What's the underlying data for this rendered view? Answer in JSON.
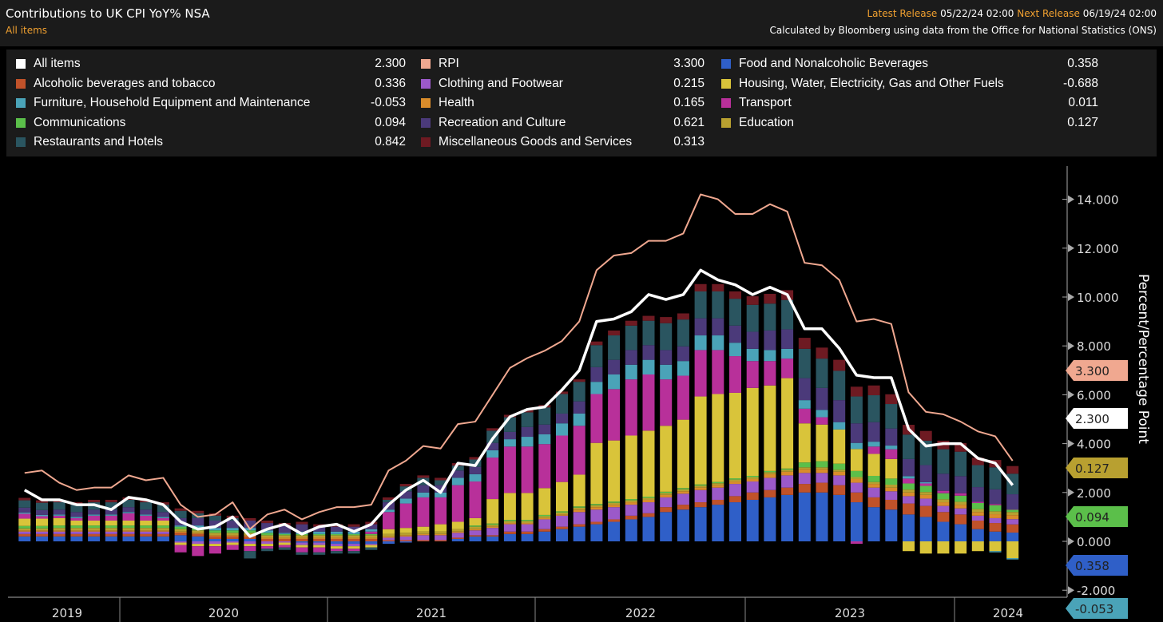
{
  "header": {
    "title": "Contributions to UK CPI YoY% NSA",
    "subtitle": "All items",
    "latest_label": "Latest Release",
    "latest_value": "05/22/24 02:00",
    "next_label": "Next Release",
    "next_value": "06/19/24 02:00",
    "source": "Calculated by Bloomberg using data from the Office for National Statistics (ONS)"
  },
  "legend": [
    {
      "name": "All items",
      "value": "2.300",
      "color": "#ffffff"
    },
    {
      "name": "Alcoholic beverages and tobacco",
      "value": "0.336",
      "color": "#c0522a"
    },
    {
      "name": "Furniture, Household Equipment and Maintenance",
      "value": "-0.053",
      "color": "#4aa3b8"
    },
    {
      "name": "Communications",
      "value": "0.094",
      "color": "#5bbf4a"
    },
    {
      "name": "Restaurants and Hotels",
      "value": "0.842",
      "color": "#2a5560"
    },
    {
      "name": "RPI",
      "value": "3.300",
      "color": "#f0a890"
    },
    {
      "name": "Clothing and Footwear",
      "value": "0.215",
      "color": "#9b59c9"
    },
    {
      "name": "Health",
      "value": "0.165",
      "color": "#d98c2b"
    },
    {
      "name": "Recreation and Culture",
      "value": "0.621",
      "color": "#4b3a7a"
    },
    {
      "name": "Miscellaneous Goods and Services",
      "value": "0.313",
      "color": "#6e1a22"
    },
    {
      "name": "Food and Nonalcoholic Beverages",
      "value": "0.358",
      "color": "#2f5fc8"
    },
    {
      "name": "Housing, Water, Electricity, Gas and Other Fuels",
      "value": "-0.688",
      "color": "#d9c43a"
    },
    {
      "name": "Transport",
      "value": "0.011",
      "color": "#b8309a"
    },
    {
      "name": "Education",
      "value": "0.127",
      "color": "#b8a030"
    }
  ],
  "chart_data": {
    "type": "bar",
    "title": "Contributions to UK CPI YoY% NSA",
    "ylabel": "Percent/Percentage Point",
    "ylim": [
      -2,
      15
    ],
    "yticks": [
      "-2.000",
      "0.000",
      "2.000",
      "4.000",
      "6.000",
      "8.000",
      "10.000",
      "12.000",
      "14.000"
    ],
    "years": [
      "2019",
      "2020",
      "2021",
      "2022",
      "2023",
      "2024"
    ],
    "period": "Jul 2019 - Apr 2024 monthly",
    "lines": {
      "All items": [
        2.1,
        1.7,
        1.7,
        1.5,
        1.5,
        1.3,
        1.8,
        1.7,
        1.5,
        0.8,
        0.5,
        0.6,
        1.0,
        0.2,
        0.5,
        0.7,
        0.3,
        0.6,
        0.7,
        0.4,
        0.7,
        1.5,
        2.1,
        2.5,
        2.0,
        3.2,
        3.1,
        4.2,
        5.1,
        5.4,
        5.5,
        6.2,
        7.0,
        9.0,
        9.1,
        9.4,
        10.1,
        9.9,
        10.1,
        11.1,
        10.7,
        10.5,
        10.1,
        10.4,
        10.1,
        8.7,
        8.7,
        7.9,
        6.8,
        6.7,
        6.7,
        4.6,
        3.9,
        4.0,
        4.0,
        3.4,
        3.2,
        2.3
      ],
      "RPI": [
        2.8,
        2.9,
        2.4,
        2.1,
        2.2,
        2.2,
        2.7,
        2.5,
        2.6,
        1.5,
        1.0,
        1.1,
        1.6,
        0.5,
        1.1,
        1.3,
        0.9,
        1.2,
        1.4,
        1.4,
        1.5,
        2.9,
        3.3,
        3.9,
        3.8,
        4.8,
        4.9,
        6.0,
        7.1,
        7.5,
        7.8,
        8.2,
        9.0,
        11.1,
        11.7,
        11.8,
        12.3,
        12.3,
        12.6,
        14.2,
        14.0,
        13.4,
        13.4,
        13.8,
        13.5,
        11.4,
        11.3,
        10.7,
        9.0,
        9.1,
        8.9,
        6.1,
        5.3,
        5.2,
        4.9,
        4.5,
        4.3,
        3.3
      ]
    },
    "series": [
      {
        "name": "Food and Nonalcoholic Beverages",
        "values": [
          0.2,
          0.2,
          0.2,
          0.2,
          0.2,
          0.2,
          0.2,
          0.2,
          0.2,
          0.25,
          0.2,
          0.1,
          0.1,
          0.1,
          0.0,
          0.0,
          -0.05,
          -0.05,
          -0.1,
          -0.1,
          -0.1,
          -0.1,
          -0.05,
          0.0,
          0.0,
          0.1,
          0.2,
          0.2,
          0.3,
          0.3,
          0.4,
          0.5,
          0.6,
          0.7,
          0.8,
          0.9,
          1.0,
          1.2,
          1.3,
          1.4,
          1.5,
          1.6,
          1.7,
          1.8,
          1.9,
          2.0,
          2.0,
          1.9,
          1.6,
          1.4,
          1.3,
          1.1,
          1.0,
          0.8,
          0.7,
          0.5,
          0.4,
          0.358
        ]
      },
      {
        "name": "Alcoholic beverages and tobacco",
        "values": [
          0.1,
          0.1,
          0.1,
          0.1,
          0.1,
          0.1,
          0.1,
          0.1,
          0.1,
          0.1,
          0.1,
          0.1,
          0.1,
          0.1,
          0.1,
          0.1,
          0.1,
          0.1,
          0.1,
          0.1,
          0.1,
          0.05,
          0.05,
          0.05,
          0.05,
          0.05,
          0.05,
          0.05,
          0.1,
          0.1,
          0.1,
          0.1,
          0.1,
          0.1,
          0.1,
          0.15,
          0.15,
          0.2,
          0.2,
          0.2,
          0.2,
          0.25,
          0.3,
          0.3,
          0.3,
          0.35,
          0.4,
          0.4,
          0.4,
          0.4,
          0.4,
          0.45,
          0.45,
          0.4,
          0.4,
          0.35,
          0.35,
          0.336
        ]
      },
      {
        "name": "Clothing and Footwear",
        "values": [
          0.1,
          0.1,
          0.1,
          0.1,
          0.1,
          0.1,
          0.1,
          0.1,
          0.1,
          -0.05,
          -0.1,
          -0.1,
          -0.05,
          -0.1,
          -0.1,
          -0.05,
          -0.1,
          -0.1,
          -0.1,
          -0.1,
          -0.05,
          0.1,
          0.15,
          0.2,
          0.2,
          0.2,
          0.2,
          0.3,
          0.3,
          0.3,
          0.4,
          0.45,
          0.5,
          0.5,
          0.5,
          0.45,
          0.45,
          0.4,
          0.45,
          0.5,
          0.5,
          0.5,
          0.45,
          0.5,
          0.5,
          0.45,
          0.4,
          0.4,
          0.4,
          0.4,
          0.35,
          0.3,
          0.3,
          0.25,
          0.25,
          0.2,
          0.2,
          0.215
        ]
      },
      {
        "name": "Health",
        "values": [
          0.05,
          0.05,
          0.05,
          0.05,
          0.05,
          0.05,
          0.05,
          0.05,
          0.05,
          0.05,
          0.05,
          0.05,
          0.05,
          0.05,
          0.05,
          0.05,
          0.05,
          0.05,
          0.05,
          0.05,
          0.05,
          0.05,
          0.05,
          0.05,
          0.05,
          0.05,
          0.05,
          0.05,
          0.05,
          0.05,
          0.05,
          0.05,
          0.1,
          0.1,
          0.1,
          0.1,
          0.1,
          0.1,
          0.1,
          0.1,
          0.1,
          0.1,
          0.1,
          0.15,
          0.15,
          0.15,
          0.15,
          0.15,
          0.15,
          0.15,
          0.15,
          0.15,
          0.15,
          0.15,
          0.15,
          0.15,
          0.16,
          0.165
        ]
      },
      {
        "name": "Education",
        "values": [
          0.08,
          0.08,
          0.1,
          0.1,
          0.1,
          0.1,
          0.1,
          0.1,
          0.1,
          0.1,
          0.1,
          0.1,
          0.1,
          0.1,
          0.1,
          0.1,
          0.1,
          0.1,
          0.1,
          0.1,
          0.1,
          0.1,
          0.1,
          0.1,
          0.1,
          0.1,
          0.1,
          0.08,
          0.08,
          0.08,
          0.08,
          0.08,
          0.08,
          0.08,
          0.08,
          0.08,
          0.08,
          0.08,
          0.08,
          0.08,
          0.08,
          0.08,
          0.08,
          0.08,
          0.08,
          0.08,
          0.08,
          0.08,
          0.08,
          0.08,
          0.12,
          0.12,
          0.12,
          0.12,
          0.12,
          0.12,
          0.12,
          0.127
        ]
      },
      {
        "name": "Communications",
        "values": [
          0.1,
          0.1,
          0.1,
          0.1,
          0.1,
          0.1,
          0.1,
          0.1,
          0.1,
          0.1,
          0.1,
          0.1,
          0.1,
          0.1,
          0.1,
          0.05,
          0.05,
          0.05,
          0.05,
          0.05,
          0.05,
          0.0,
          0.0,
          0.0,
          0.0,
          0.0,
          0.05,
          0.05,
          0.05,
          0.05,
          0.05,
          0.05,
          0.05,
          0.05,
          0.05,
          0.05,
          0.05,
          0.05,
          0.05,
          0.05,
          0.05,
          0.05,
          0.05,
          0.05,
          0.05,
          0.2,
          0.25,
          0.25,
          0.25,
          0.25,
          0.25,
          0.25,
          0.25,
          0.25,
          0.25,
          0.25,
          0.25,
          0.094
        ]
      },
      {
        "name": "Housing, Water, Electricity, Gas and Other Fuels",
        "values": [
          0.3,
          0.3,
          0.3,
          0.2,
          0.2,
          0.2,
          0.2,
          0.2,
          0.2,
          -0.1,
          -0.1,
          -0.1,
          -0.1,
          -0.1,
          -0.1,
          -0.1,
          -0.1,
          -0.1,
          -0.1,
          -0.1,
          -0.1,
          0.2,
          0.2,
          0.2,
          0.3,
          0.3,
          0.3,
          1.0,
          1.1,
          1.1,
          1.1,
          1.2,
          1.3,
          2.5,
          2.5,
          2.6,
          2.7,
          2.7,
          2.8,
          3.6,
          3.6,
          3.5,
          3.6,
          3.5,
          3.7,
          1.6,
          1.5,
          1.4,
          0.9,
          0.9,
          0.8,
          -0.4,
          -0.5,
          -0.5,
          -0.5,
          -0.4,
          -0.4,
          -0.688
        ]
      },
      {
        "name": "Transport",
        "values": [
          0.2,
          0.1,
          0.1,
          0.1,
          0.2,
          0.2,
          0.3,
          0.2,
          0.1,
          -0.3,
          -0.4,
          -0.3,
          -0.2,
          -0.2,
          -0.1,
          -0.1,
          -0.2,
          -0.2,
          -0.1,
          -0.1,
          0.1,
          0.7,
          1.0,
          1.2,
          1.1,
          1.5,
          1.5,
          1.7,
          1.9,
          1.9,
          1.8,
          1.9,
          2.0,
          2.0,
          2.1,
          2.3,
          2.3,
          1.9,
          1.8,
          1.9,
          1.8,
          1.5,
          1.1,
          1.0,
          0.8,
          0.6,
          0.3,
          0.0,
          -0.1,
          0.3,
          0.4,
          0.2,
          0.1,
          0.1,
          0.1,
          0.05,
          0.05,
          0.011
        ]
      },
      {
        "name": "Furniture, Household Equipment and Maintenance",
        "values": [
          0.05,
          0.05,
          0.05,
          0.05,
          0.05,
          0.05,
          0.05,
          0.05,
          0.05,
          0.05,
          0.1,
          0.1,
          0.1,
          0.1,
          0.1,
          0.05,
          0.1,
          0.1,
          0.1,
          0.1,
          0.1,
          0.1,
          0.2,
          0.2,
          0.2,
          0.3,
          0.3,
          0.3,
          0.3,
          0.4,
          0.4,
          0.5,
          0.5,
          0.5,
          0.6,
          0.6,
          0.6,
          0.6,
          0.6,
          0.6,
          0.6,
          0.55,
          0.5,
          0.45,
          0.4,
          0.35,
          0.3,
          0.3,
          0.25,
          0.2,
          0.15,
          0.1,
          0.05,
          0.0,
          0.0,
          0.0,
          -0.05,
          -0.053
        ]
      },
      {
        "name": "Recreation and Culture",
        "values": [
          0.2,
          0.2,
          0.2,
          0.2,
          0.2,
          0.2,
          0.2,
          0.2,
          0.2,
          0.3,
          0.3,
          0.3,
          0.3,
          0.3,
          0.3,
          0.3,
          0.3,
          0.2,
          0.2,
          0.2,
          0.2,
          0.3,
          0.3,
          0.3,
          0.3,
          0.3,
          0.3,
          0.3,
          0.3,
          0.4,
          0.4,
          0.4,
          0.5,
          0.6,
          0.6,
          0.6,
          0.6,
          0.6,
          0.6,
          0.7,
          0.7,
          0.7,
          0.7,
          0.8,
          0.8,
          0.9,
          0.9,
          0.9,
          0.8,
          0.8,
          0.7,
          0.7,
          0.7,
          0.7,
          0.7,
          0.6,
          0.6,
          0.621
        ]
      },
      {
        "name": "Restaurants and Hotels",
        "values": [
          0.3,
          0.3,
          0.3,
          0.3,
          0.3,
          0.3,
          0.3,
          0.3,
          0.3,
          0.3,
          0.2,
          0.2,
          0.1,
          -0.3,
          -0.1,
          -0.1,
          -0.1,
          -0.1,
          -0.1,
          -0.1,
          -0.1,
          0.1,
          0.2,
          0.3,
          0.2,
          0.2,
          0.3,
          0.5,
          0.6,
          0.6,
          0.7,
          0.8,
          0.8,
          0.9,
          1.0,
          1.0,
          1.0,
          1.1,
          1.1,
          1.1,
          1.1,
          1.1,
          1.1,
          1.1,
          1.2,
          1.2,
          1.2,
          1.2,
          1.1,
          1.1,
          1.0,
          1.0,
          1.0,
          1.0,
          1.0,
          0.9,
          0.9,
          0.842
        ]
      },
      {
        "name": "Miscellaneous Goods and Services",
        "values": [
          0.1,
          0.1,
          0.1,
          0.1,
          0.1,
          0.1,
          0.1,
          0.1,
          0.1,
          0.1,
          0.1,
          0.1,
          0.1,
          0.1,
          0.1,
          0.1,
          0.1,
          0.1,
          0.1,
          0.1,
          0.1,
          0.1,
          0.1,
          0.1,
          0.1,
          0.1,
          0.1,
          0.1,
          0.1,
          0.1,
          0.1,
          0.1,
          0.1,
          0.15,
          0.2,
          0.2,
          0.2,
          0.25,
          0.25,
          0.3,
          0.3,
          0.3,
          0.35,
          0.4,
          0.4,
          0.45,
          0.45,
          0.45,
          0.4,
          0.4,
          0.4,
          0.4,
          0.4,
          0.35,
          0.35,
          0.3,
          0.3,
          0.313
        ]
      }
    ],
    "end_tags": [
      {
        "name": "RPI",
        "label": "3.300"
      },
      {
        "name": "All items",
        "label": "2.300"
      },
      {
        "name": "Education",
        "label": "0.127"
      },
      {
        "name": "Communications",
        "label": "0.094"
      },
      {
        "name": "Food and Nonalcoholic Beverages",
        "label": "0.358"
      },
      {
        "name": "Furniture, Household Equipment and Maintenance",
        "label": "-0.053"
      }
    ]
  }
}
